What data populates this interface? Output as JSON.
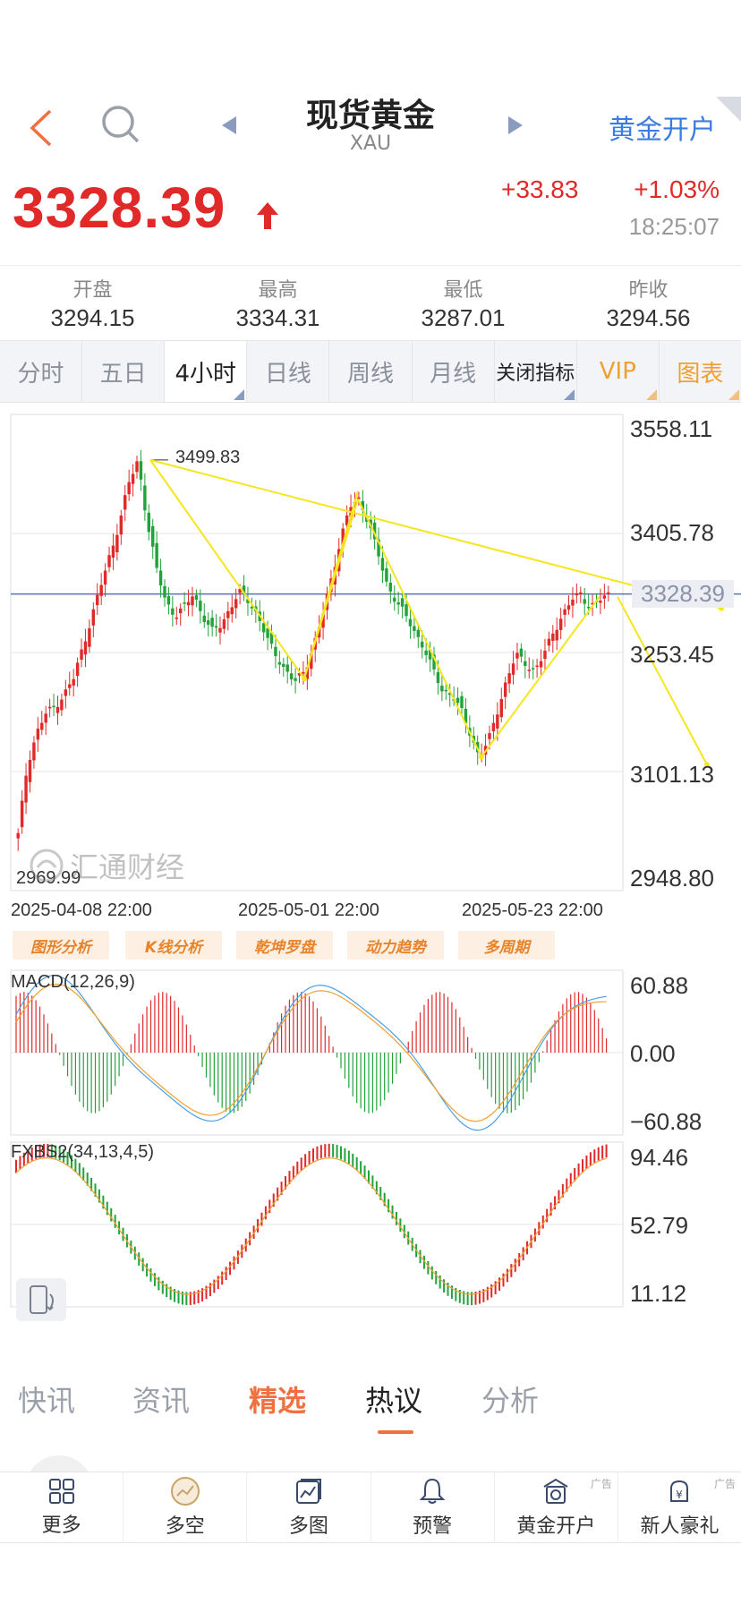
{
  "header": {
    "title": "现货黄金",
    "symbol": "XAU",
    "open_account": "黄金开户"
  },
  "quote": {
    "price": "3328.39",
    "change": "+33.83",
    "change_pct": "+1.03%",
    "time": "18:25:07"
  },
  "stats": [
    {
      "label": "开盘",
      "value": "3294.15"
    },
    {
      "label": "最高",
      "value": "3334.31"
    },
    {
      "label": "最低",
      "value": "3287.01"
    },
    {
      "label": "昨收",
      "value": "3294.56"
    }
  ],
  "period_tabs": [
    "分时",
    "五日",
    "4小时",
    "日线",
    "周线",
    "月线",
    "关闭指标",
    "VIP",
    "图表"
  ],
  "active_period": "4小时",
  "chart": {
    "y_labels": [
      "3558.11",
      "3405.78",
      "3253.45",
      "3101.13",
      "2948.80"
    ],
    "current_price_label": "3328.39",
    "high_label": "3499.83",
    "low_label": "2969.99",
    "dates": [
      "2025-04-08 22:00",
      "2025-05-01 22:00",
      "2025-05-23 22:00"
    ],
    "watermark": "汇通财经"
  },
  "chart_data": [
    {
      "type": "candlestick",
      "title": "",
      "x": [
        "2025-04-08 22:00",
        "2025-05-01 22:00",
        "2025-05-23 22:00"
      ],
      "ylim": [
        2948.8,
        3558.11
      ],
      "y_ticks": [
        3558.11,
        3405.78,
        3253.45,
        3101.13,
        2948.8
      ],
      "current_price": 3328.39,
      "marked_high": 3499.83,
      "marked_low": 2969.99,
      "close_path": [
        3020,
        3110,
        3150,
        3175,
        3185,
        3200,
        3220,
        3260,
        3300,
        3340,
        3380,
        3420,
        3470,
        3499.83,
        3420,
        3360,
        3320,
        3300,
        3310,
        3330,
        3300,
        3280,
        3290,
        3310,
        3330,
        3320,
        3300,
        3270,
        3250,
        3230,
        3215,
        3230,
        3260,
        3300,
        3350,
        3400,
        3440,
        3450,
        3420,
        3380,
        3340,
        3320,
        3300,
        3280,
        3260,
        3230,
        3205,
        3200,
        3180,
        3150,
        3120,
        3140,
        3180,
        3220,
        3250,
        3240,
        3230,
        3250,
        3280,
        3300,
        3320,
        3330,
        3310,
        3320,
        3328.39
      ]
    },
    {
      "type": "bar",
      "title": "MACD(12,26,9)",
      "y_ticks": [
        60.88,
        0.0,
        -60.88
      ],
      "ylim": [
        -60.88,
        60.88
      ]
    },
    {
      "type": "line",
      "title": "FXBS2(34,13,4,5)",
      "y_ticks": [
        94.46,
        52.79,
        11.12
      ],
      "ylim": [
        0,
        100
      ]
    }
  ],
  "tools": [
    "图形分析",
    "K线分析",
    "乾坤罗盘",
    "动力趋势",
    "多周期"
  ],
  "macd": {
    "title": "MACD(12,26,9)",
    "labels": [
      "60.88",
      "0.00",
      "−60.88"
    ]
  },
  "fxbs": {
    "title": "FXBS2(34,13,4,5)",
    "labels": [
      "94.46",
      "52.79",
      "11.12"
    ]
  },
  "news_tabs": [
    "快讯",
    "资讯",
    "精选",
    "热议",
    "分析"
  ],
  "news_active": "热议",
  "bottom_nav": [
    {
      "label": "更多",
      "icon": "grid-icon"
    },
    {
      "label": "多空",
      "icon": "trend-circle-icon"
    },
    {
      "label": "多图",
      "icon": "multi-chart-icon"
    },
    {
      "label": "预警",
      "icon": "bell-icon"
    },
    {
      "label": "黄金开户",
      "icon": "gold-account-icon",
      "ad": "广告"
    },
    {
      "label": "新人豪礼",
      "icon": "gift-money-icon",
      "ad": "广告"
    }
  ],
  "colors": {
    "up": "#e02a2a",
    "down": "#22a33a",
    "accent": "#3c7be0",
    "trend": "#f5e61e"
  }
}
